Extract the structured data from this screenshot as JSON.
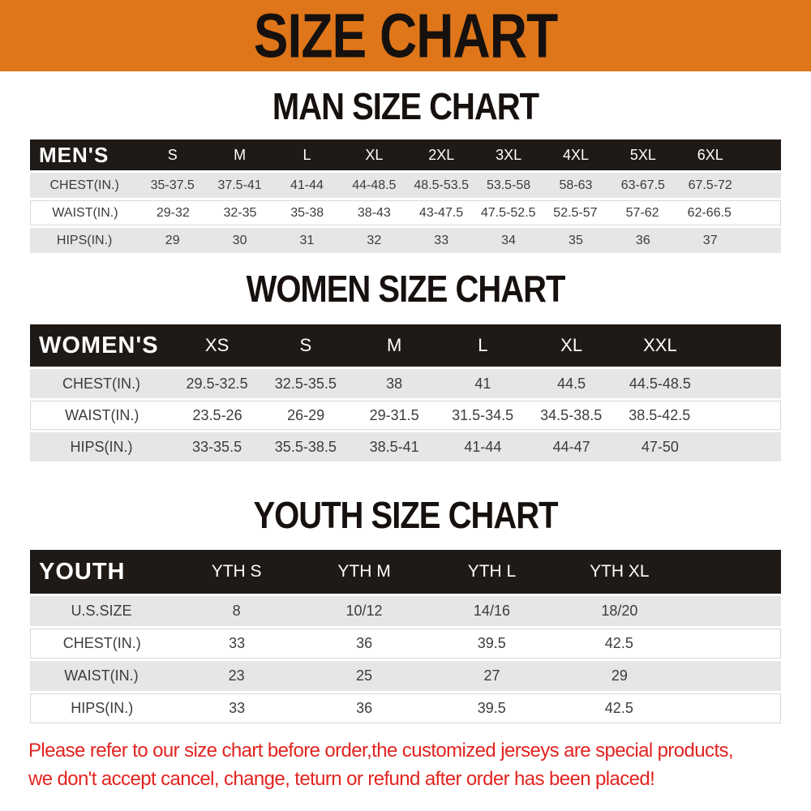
{
  "banner": {
    "title": "SIZE CHART"
  },
  "men": {
    "title": "MAN SIZE CHART",
    "label": "MEN'S",
    "sizes": [
      "S",
      "M",
      "L",
      "XL",
      "2XL",
      "3XL",
      "4XL",
      "5XL",
      "6XL"
    ],
    "chest": {
      "label": "CHEST(IN.)",
      "values": [
        "35-37.5",
        "37.5-41",
        "41-44",
        "44-48.5",
        "48.5-53.5",
        "53.5-58",
        "58-63",
        "63-67.5",
        "67.5-72"
      ]
    },
    "waist": {
      "label": "WAIST(IN.)",
      "values": [
        "29-32",
        "32-35",
        "35-38",
        "38-43",
        "43-47.5",
        "47.5-52.5",
        "52.5-57",
        "57-62",
        "62-66.5"
      ]
    },
    "hips": {
      "label": "HIPS(IN.)",
      "values": [
        "29",
        "30",
        "31",
        "32",
        "33",
        "34",
        "35",
        "36",
        "37"
      ]
    }
  },
  "women": {
    "title": "WOMEN SIZE CHART",
    "label": "WOMEN'S",
    "sizes": [
      "XS",
      "S",
      "M",
      "L",
      "XL",
      "XXL"
    ],
    "chest": {
      "label": "CHEST(IN.)",
      "values": [
        "29.5-32.5",
        "32.5-35.5",
        "38",
        "41",
        "44.5",
        "44.5-48.5"
      ]
    },
    "waist": {
      "label": "WAIST(IN.)",
      "values": [
        "23.5-26",
        "26-29",
        "29-31.5",
        "31.5-34.5",
        "34.5-38.5",
        "38.5-42.5"
      ]
    },
    "hips": {
      "label": "HIPS(IN.)",
      "values": [
        "33-35.5",
        "35.5-38.5",
        "38.5-41",
        "41-44",
        "44-47",
        "47-50"
      ]
    }
  },
  "youth": {
    "title": "YOUTH SIZE CHART",
    "label": "YOUTH",
    "sizes": [
      "YTH S",
      "YTH M",
      "YTH L",
      "YTH XL"
    ],
    "ussize": {
      "label": "U.S.SIZE",
      "values": [
        "8",
        "10/12",
        "14/16",
        "18/20"
      ]
    },
    "chest": {
      "label": "CHEST(IN.)",
      "values": [
        "33",
        "36",
        "39.5",
        "42.5"
      ]
    },
    "waist": {
      "label": "WAIST(IN.)",
      "values": [
        "23",
        "25",
        "27",
        "29"
      ]
    },
    "hips": {
      "label": "HIPS(IN.)",
      "values": [
        "33",
        "36",
        "39.5",
        "42.5"
      ]
    }
  },
  "disclaimer": {
    "line1": "Please refer to our size chart before order,the customized jerseys are special products,",
    "line2": "we don't accept cancel, change, teturn or refund after order has been placed!"
  },
  "colors": {
    "banner_orange": "#e0761a",
    "header_black": "#1f1a16",
    "row_gray": "#e6e6e6",
    "disclaimer_red": "#e22420"
  }
}
